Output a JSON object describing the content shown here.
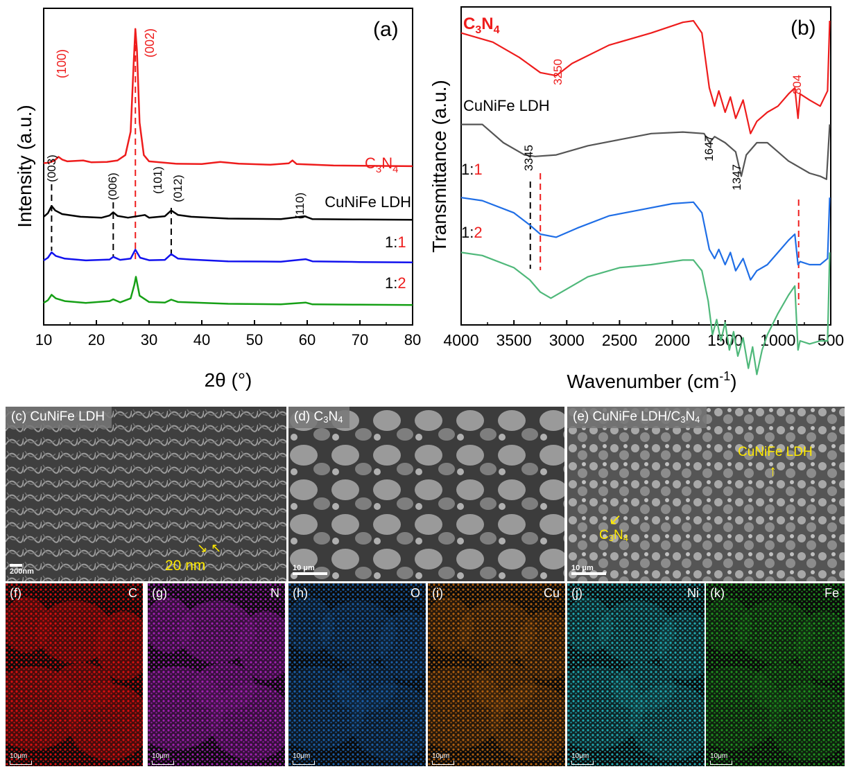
{
  "chart_data": [
    {
      "type": "line",
      "panel_label": "(a)",
      "xlabel": "2θ (°)",
      "ylabel": "Intensity (a.u.)",
      "xlim": [
        10,
        80
      ],
      "xticks": [
        "10",
        "20",
        "30",
        "40",
        "50",
        "60",
        "70",
        "80"
      ],
      "series": [
        {
          "name": "C3N4",
          "color": "#ee1c1c",
          "points": [
            [
              10,
              0.75
            ],
            [
              11,
              0.78
            ],
            [
              12,
              0.88
            ],
            [
              12.8,
              1.1
            ],
            [
              13.5,
              0.95
            ],
            [
              14.5,
              0.85
            ],
            [
              17.5,
              0.9
            ],
            [
              19,
              0.8
            ],
            [
              22,
              0.82
            ],
            [
              24,
              0.9
            ],
            [
              25.5,
              1.2
            ],
            [
              26.5,
              2.5
            ],
            [
              27.1,
              6.5
            ],
            [
              27.4,
              8.2
            ],
            [
              27.7,
              7.0
            ],
            [
              28.2,
              3.0
            ],
            [
              29,
              1.2
            ],
            [
              30,
              0.85
            ],
            [
              35,
              0.72
            ],
            [
              40,
              0.7
            ],
            [
              43.5,
              0.82
            ],
            [
              47,
              0.72
            ],
            [
              53,
              0.66
            ],
            [
              56.5,
              0.74
            ],
            [
              57.2,
              0.9
            ],
            [
              58,
              0.7
            ],
            [
              65,
              0.62
            ],
            [
              72,
              0.6
            ],
            [
              80,
              0.58
            ]
          ]
        },
        {
          "name": "CuNiFe LDH",
          "color": "#000000",
          "points": [
            [
              10,
              0.35
            ],
            [
              10.8,
              0.55
            ],
            [
              11.5,
              0.95
            ],
            [
              12.2,
              0.7
            ],
            [
              13.5,
              0.5
            ],
            [
              17,
              0.35
            ],
            [
              21,
              0.3
            ],
            [
              22.5,
              0.42
            ],
            [
              23.2,
              0.6
            ],
            [
              24,
              0.4
            ],
            [
              26,
              0.3
            ],
            [
              29.2,
              0.45
            ],
            [
              30,
              0.3
            ],
            [
              33,
              0.38
            ],
            [
              34.2,
              0.7
            ],
            [
              35.5,
              0.45
            ],
            [
              38,
              0.35
            ],
            [
              45,
              0.25
            ],
            [
              55,
              0.22
            ],
            [
              59.5,
              0.38
            ],
            [
              61,
              0.22
            ],
            [
              70,
              0.2
            ],
            [
              80,
              0.18
            ]
          ]
        },
        {
          "name": "1:1",
          "color": "#1212ee",
          "points": [
            [
              10,
              0.35
            ],
            [
              10.8,
              0.5
            ],
            [
              11.5,
              0.8
            ],
            [
              12.3,
              0.6
            ],
            [
              14,
              0.45
            ],
            [
              18,
              0.35
            ],
            [
              22.5,
              0.4
            ],
            [
              23.2,
              0.55
            ],
            [
              24.5,
              0.38
            ],
            [
              26.5,
              0.45
            ],
            [
              27.4,
              0.95
            ],
            [
              28.3,
              0.5
            ],
            [
              30,
              0.36
            ],
            [
              33,
              0.38
            ],
            [
              34.2,
              0.7
            ],
            [
              35.5,
              0.45
            ],
            [
              38,
              0.4
            ],
            [
              45,
              0.3
            ],
            [
              55,
              0.28
            ],
            [
              59.7,
              0.42
            ],
            [
              61,
              0.3
            ],
            [
              70,
              0.26
            ],
            [
              80,
              0.24
            ]
          ]
        },
        {
          "name": "1:2",
          "color": "#16a016",
          "points": [
            [
              10,
              0.3
            ],
            [
              10.8,
              0.45
            ],
            [
              11.5,
              0.75
            ],
            [
              12.3,
              0.55
            ],
            [
              14,
              0.4
            ],
            [
              18,
              0.3
            ],
            [
              22.5,
              0.4
            ],
            [
              23.2,
              0.5
            ],
            [
              24.5,
              0.33
            ],
            [
              26.5,
              0.55
            ],
            [
              27.2,
              1.3
            ],
            [
              27.5,
              1.75
            ],
            [
              28.2,
              0.7
            ],
            [
              30,
              0.35
            ],
            [
              33,
              0.32
            ],
            [
              34.2,
              0.48
            ],
            [
              35.5,
              0.35
            ],
            [
              45,
              0.25
            ],
            [
              55,
              0.22
            ],
            [
              59.7,
              0.32
            ],
            [
              61,
              0.22
            ],
            [
              70,
              0.2
            ],
            [
              80,
              0.18
            ]
          ]
        }
      ],
      "series_labels": {
        "c3n4": "C3N4",
        "ldh": "CuNiFe LDH",
        "r11_a": "1:",
        "r11_b": "1",
        "r12_a": "1:",
        "r12_b": "2"
      },
      "annotations": {
        "p100": "(100)",
        "p002": "(002)",
        "p003": "(003)",
        "p006": "(006)",
        "p101": "(101)",
        "p012": "(012)",
        "p110": "(110)"
      }
    },
    {
      "type": "line",
      "panel_label": "(b)",
      "xlabel": "Wavenumber (cm-1)",
      "ylabel": "Transmittance (a.u.)",
      "xlim": [
        4000,
        500
      ],
      "xticks": [
        "4000",
        "3500",
        "3000",
        "2500",
        "2000",
        "1500",
        "1000",
        "500"
      ],
      "series": [
        {
          "name": "C3N4",
          "color": "#ee1c1c",
          "points": [
            [
              4000,
              0.96
            ],
            [
              3700,
              0.93
            ],
            [
              3450,
              0.88
            ],
            [
              3250,
              0.83
            ],
            [
              3100,
              0.82
            ],
            [
              2950,
              0.86
            ],
            [
              2600,
              0.92
            ],
            [
              2200,
              0.96
            ],
            [
              1900,
              0.995
            ],
            [
              1800,
              1.0
            ],
            [
              1720,
              0.96
            ],
            [
              1650,
              0.78
            ],
            [
              1600,
              0.72
            ],
            [
              1560,
              0.77
            ],
            [
              1500,
              0.7
            ],
            [
              1450,
              0.75
            ],
            [
              1400,
              0.68
            ],
            [
              1330,
              0.74
            ],
            [
              1260,
              0.63
            ],
            [
              1200,
              0.67
            ],
            [
              1100,
              0.7
            ],
            [
              1000,
              0.72
            ],
            [
              900,
              0.76
            ],
            [
              840,
              0.78
            ],
            [
              810,
              0.68
            ],
            [
              790,
              0.76
            ],
            [
              700,
              0.74
            ],
            [
              600,
              0.72
            ],
            [
              530,
              0.77
            ],
            [
              510,
              1.0
            ]
          ]
        },
        {
          "name": "CuNiFe LDH",
          "color": "#555555",
          "points": [
            [
              4000,
              0.66
            ],
            [
              3800,
              0.66
            ],
            [
              3600,
              0.6
            ],
            [
              3400,
              0.56
            ],
            [
              3300,
              0.555
            ],
            [
              3100,
              0.56
            ],
            [
              2800,
              0.59
            ],
            [
              2500,
              0.61
            ],
            [
              2200,
              0.63
            ],
            [
              1900,
              0.635
            ],
            [
              1700,
              0.63
            ],
            [
              1647,
              0.6
            ],
            [
              1600,
              0.62
            ],
            [
              1500,
              0.6
            ],
            [
              1400,
              0.57
            ],
            [
              1347,
              0.49
            ],
            [
              1300,
              0.56
            ],
            [
              1200,
              0.6
            ],
            [
              1100,
              0.6
            ],
            [
              1000,
              0.57
            ],
            [
              900,
              0.54
            ],
            [
              800,
              0.52
            ],
            [
              700,
              0.5
            ],
            [
              600,
              0.49
            ],
            [
              540,
              0.48
            ],
            [
              510,
              0.66
            ]
          ]
        },
        {
          "name": "1:1",
          "color": "#1f6ee6",
          "points": [
            [
              4000,
              0.42
            ],
            [
              3800,
              0.41
            ],
            [
              3500,
              0.37
            ],
            [
              3350,
              0.33
            ],
            [
              3250,
              0.3
            ],
            [
              3100,
              0.29
            ],
            [
              2900,
              0.32
            ],
            [
              2600,
              0.36
            ],
            [
              2300,
              0.38
            ],
            [
              2000,
              0.4
            ],
            [
              1800,
              0.405
            ],
            [
              1720,
              0.37
            ],
            [
              1650,
              0.25
            ],
            [
              1600,
              0.22
            ],
            [
              1560,
              0.25
            ],
            [
              1500,
              0.2
            ],
            [
              1450,
              0.24
            ],
            [
              1400,
              0.18
            ],
            [
              1330,
              0.22
            ],
            [
              1260,
              0.15
            ],
            [
              1200,
              0.18
            ],
            [
              1100,
              0.2
            ],
            [
              1000,
              0.24
            ],
            [
              900,
              0.28
            ],
            [
              840,
              0.3
            ],
            [
              810,
              0.2
            ],
            [
              790,
              0.21
            ],
            [
              700,
              0.2
            ],
            [
              600,
              0.2
            ],
            [
              530,
              0.22
            ],
            [
              510,
              0.42
            ]
          ]
        },
        {
          "name": "1:2",
          "color": "#4fb87a",
          "points": [
            [
              4000,
              0.24
            ],
            [
              3800,
              0.23
            ],
            [
              3500,
              0.19
            ],
            [
              3350,
              0.15
            ],
            [
              3250,
              0.11
            ],
            [
              3150,
              0.09
            ],
            [
              3000,
              0.12
            ],
            [
              2800,
              0.16
            ],
            [
              2500,
              0.19
            ],
            [
              2200,
              0.2
            ],
            [
              1900,
              0.215
            ],
            [
              1800,
              0.215
            ],
            [
              1720,
              0.18
            ],
            [
              1660,
              0.08
            ],
            [
              1620,
              -0.03
            ],
            [
              1580,
              0.02
            ],
            [
              1540,
              -0.05
            ],
            [
              1500,
              0.01
            ],
            [
              1460,
              -0.08
            ],
            [
              1420,
              -0.02
            ],
            [
              1380,
              -0.1
            ],
            [
              1330,
              -0.04
            ],
            [
              1280,
              -0.14
            ],
            [
              1240,
              -0.07
            ],
            [
              1200,
              -0.16
            ],
            [
              1150,
              -0.08
            ],
            [
              1100,
              -0.03
            ],
            [
              1000,
              0.04
            ],
            [
              900,
              0.1
            ],
            [
              840,
              0.13
            ],
            [
              810,
              -0.08
            ],
            [
              790,
              -0.05
            ],
            [
              700,
              -0.06
            ],
            [
              600,
              -0.05
            ],
            [
              530,
              -0.05
            ],
            [
              510,
              0.24
            ]
          ]
        }
      ],
      "series_labels": {
        "c3n4": "C3N4",
        "ldh": "CuNiFe LDH",
        "r11_a": "1:",
        "r11_b": "1",
        "r12_a": "1:",
        "r12_b": "2"
      },
      "annotations": {
        "a3250": "3250",
        "a804": "804",
        "a3345": "3345",
        "a1647": "1647",
        "a1347": "1347"
      }
    }
  ],
  "sem_panels": [
    {
      "label_prefix": "(c) CuNiFe LDH",
      "scale": "200nm",
      "annotation": "20 nm"
    },
    {
      "label_prefix": "(d) C",
      "label_sub1": "3",
      "label_mid": "N",
      "label_sub2": "4",
      "scale": "10 μm"
    },
    {
      "label_prefix": "(e) CuNiFe LDH/C",
      "label_sub1": "3",
      "label_mid": "N",
      "label_sub2": "4",
      "scale": "10 μm",
      "arrow_c3n4_main": "C",
      "arrow_c3n4_sub1": "3",
      "arrow_c3n4_mid": "N",
      "arrow_c3n4_sub2": "4",
      "arrow_ldh": "CuNiFe LDH"
    }
  ],
  "eds_maps": [
    {
      "panel": "(f)",
      "element": "C",
      "scale": "10μm",
      "color": "#d81010"
    },
    {
      "panel": "(g)",
      "element": "N",
      "scale": "10μm",
      "color": "#a020b0"
    },
    {
      "panel": "(h)",
      "element": "O",
      "scale": "10μm",
      "color": "#1a5fa8"
    },
    {
      "panel": "(i)",
      "element": "Cu",
      "scale": "10μm",
      "color": "#b06010"
    },
    {
      "panel": "(j)",
      "element": "Ni",
      "scale": "10μm",
      "color": "#20a8b0"
    },
    {
      "panel": "(k)",
      "element": "Fe",
      "scale": "10μm",
      "color": "#209020"
    }
  ]
}
